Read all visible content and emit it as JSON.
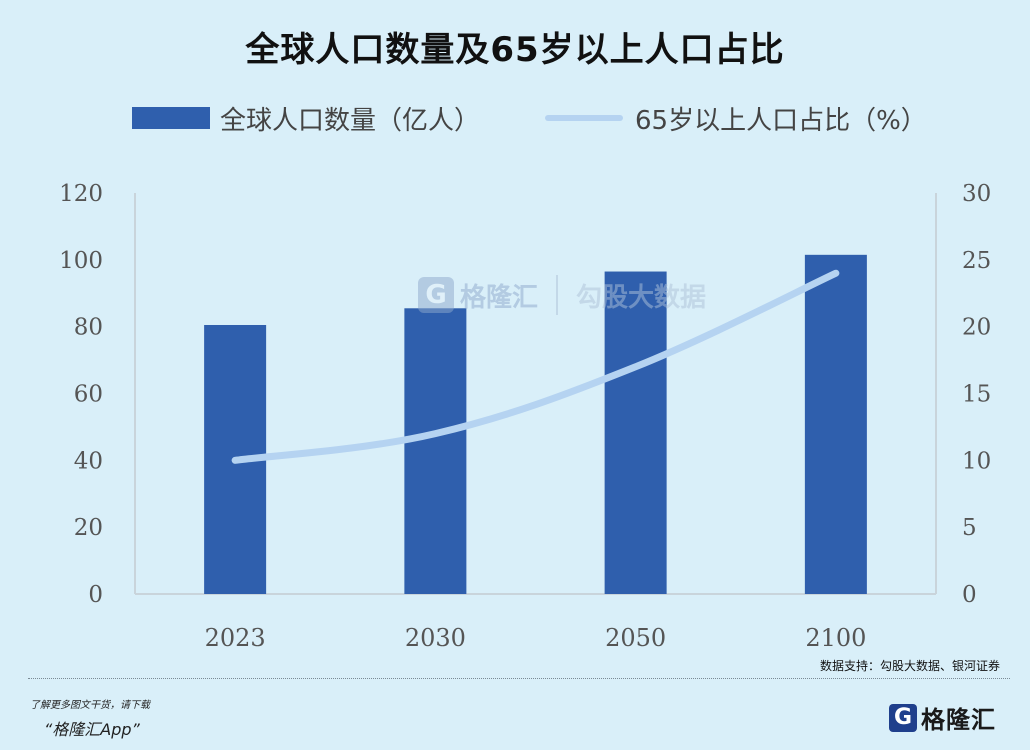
{
  "title": "全球人口数量及65岁以上人口占比",
  "legend": {
    "bar_label": "全球人口数量（亿人）",
    "line_label": "65岁以上人口占比（%）"
  },
  "source": "数据支持：勾股大数据、银河证券",
  "footer": {
    "note": "了解更多图文干货，请下载",
    "app": "“格隆汇App”",
    "logo_icon": "G",
    "logo_text": "格隆汇"
  },
  "watermark": {
    "icon": "G",
    "name1": "格隆汇",
    "name2": "勾股大数据"
  },
  "colors": {
    "bar": "#2f5fad",
    "line": "#b5d3f1",
    "background": "#d9eff9"
  },
  "chart_data": {
    "type": "bar",
    "categories": [
      "2023",
      "2030",
      "2050",
      "2100"
    ],
    "series": [
      {
        "name": "全球人口数量（亿人）",
        "type": "bar",
        "axis": "left",
        "values": [
          80.5,
          85.5,
          96.5,
          101.5
        ]
      },
      {
        "name": "65岁以上人口占比（%）",
        "type": "line",
        "axis": "right",
        "values": [
          10,
          12,
          17,
          24
        ]
      }
    ],
    "y_left": {
      "min": 0,
      "max": 120,
      "ticks": [
        0,
        20,
        40,
        60,
        80,
        100,
        120
      ]
    },
    "y_right": {
      "min": 0,
      "max": 30,
      "ticks": [
        0,
        5,
        10,
        15,
        20,
        25,
        30
      ]
    },
    "grid": false,
    "legend_position": "top"
  }
}
